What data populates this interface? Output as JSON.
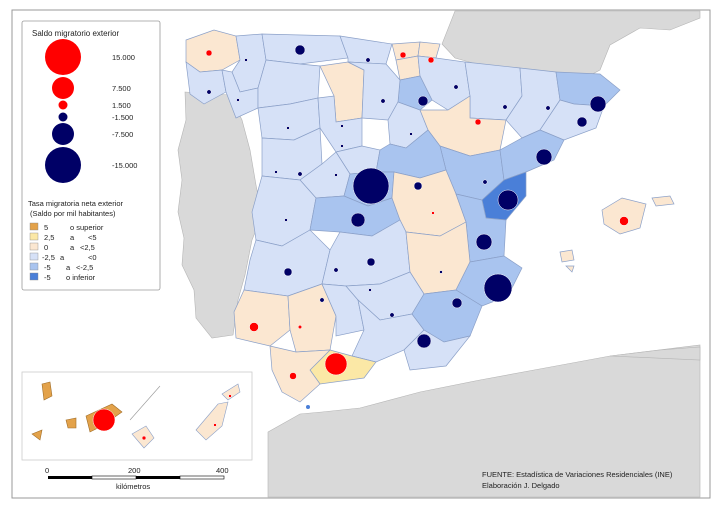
{
  "colors": {
    "sea": "#ffffff",
    "foreign_land": "#d9d9d9",
    "class_5_or_more": "#e3a24a",
    "class_2_5_to_5": "#fbe8a6",
    "class_0_to_2_5": "#fbe7d1",
    "class_m2_5_to_0": "#d6e1f7",
    "class_m5_to_m2_5": "#a9c4ef",
    "class_m5_or_less": "#4a7fd8",
    "positive_circle": "#ff0000",
    "negative_circle": "#000066"
  },
  "legend_circles": {
    "title": "Saldo migratorio exterior",
    "items": [
      {
        "label": "15.000",
        "value": 15000
      },
      {
        "label": "7.500",
        "value": 7500
      },
      {
        "label": "1.500",
        "value": 1500
      },
      {
        "label": "-1.500",
        "value": -1500
      },
      {
        "label": "-7.500",
        "value": -7500
      },
      {
        "label": "-15.000",
        "value": -15000
      }
    ]
  },
  "legend_rate": {
    "title": "Tasa migratoria neta exterior",
    "subtitle": "(Saldo por mil habitantes)",
    "classes": [
      {
        "from": "5",
        "mid": "o superior",
        "to": "",
        "color_key": "class_5_or_more"
      },
      {
        "from": "2,5",
        "mid": "a",
        "to": "<5",
        "color_key": "class_2_5_to_5"
      },
      {
        "from": "0",
        "mid": "a",
        "to": "<2,5",
        "color_key": "class_0_to_2_5"
      },
      {
        "from": "-2,5",
        "mid": "a",
        "to": "<0",
        "color_key": "class_m2_5_to_0"
      },
      {
        "from": "-5",
        "mid": "a",
        "to": "<-2,5",
        "color_key": "class_m5_to_m2_5"
      },
      {
        "from": "-5",
        "mid": "o inferior",
        "to": "",
        "color_key": "class_m5_or_less"
      }
    ]
  },
  "scale_bar": {
    "ticks": [
      "0",
      "200",
      "400"
    ],
    "unit": "kilómetros"
  },
  "source": {
    "line1": "FUENTE: Estadística de Variaciones Residenciales (INE)",
    "line2": "Elaboración J. Delgado"
  }
}
